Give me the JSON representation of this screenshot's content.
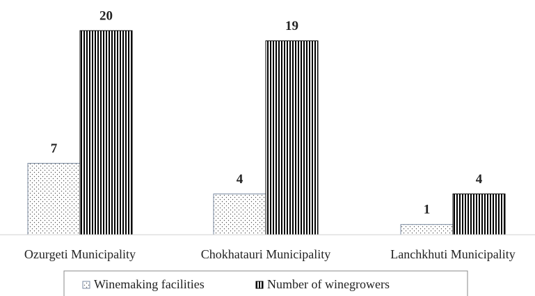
{
  "chart_data": {
    "type": "bar",
    "categories": [
      "Ozurgeti Municipality",
      "Chokhatauri Municipality",
      "Lanchkhuti Municipality"
    ],
    "series": [
      {
        "name": "Winemaking facilities",
        "color": "#000000",
        "pattern": "dots",
        "values": [
          7,
          4,
          1
        ]
      },
      {
        "name": "Number of winegrowers",
        "color": "#000000",
        "pattern": "stripes",
        "values": [
          20,
          19,
          4
        ]
      }
    ],
    "ylim": [
      0,
      20
    ]
  }
}
